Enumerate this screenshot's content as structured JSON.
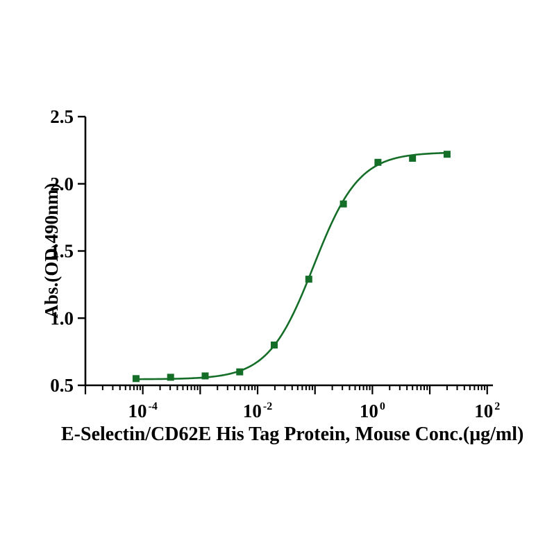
{
  "figure": {
    "background": "#ffffff"
  },
  "chart_data": {
    "type": "scatter",
    "title": "",
    "xlabel": "E-Selectin/CD62E His Tag Protein, Mouse Conc.(μg/ml)",
    "ylabel": "Abs.(OD.490nm)",
    "xscale": "log10",
    "xlim_log10": [
      -5,
      2.1
    ],
    "ylim": [
      0.5,
      2.5
    ],
    "grid": false,
    "legend": "none",
    "axis_color": "#000000",
    "series_color": "#156e28",
    "marker": "square",
    "yticks": [
      {
        "label": "0.5",
        "value": 0.5
      },
      {
        "label": "1.0",
        "value": 1.0
      },
      {
        "label": "1.5",
        "value": 1.5
      },
      {
        "label": "2.0",
        "value": 2.0
      },
      {
        "label": "2.5",
        "value": 2.5
      }
    ],
    "xticks": [
      {
        "base": "10",
        "exp": "-4",
        "log10": -4
      },
      {
        "base": "10",
        "exp": "-2",
        "log10": -2
      },
      {
        "base": "10",
        "exp": "0",
        "log10": 0
      },
      {
        "base": "10",
        "exp": "2",
        "log10": 2
      }
    ],
    "points": [
      {
        "x": 7.63e-05,
        "y": 0.55
      },
      {
        "x": 0.000305,
        "y": 0.56
      },
      {
        "x": 0.00122,
        "y": 0.57
      },
      {
        "x": 0.00488,
        "y": 0.6
      },
      {
        "x": 0.0195,
        "y": 0.8
      },
      {
        "x": 0.078,
        "y": 1.29
      },
      {
        "x": 0.3125,
        "y": 1.85
      },
      {
        "x": 1.25,
        "y": 2.16
      },
      {
        "x": 5,
        "y": 2.19
      },
      {
        "x": 20,
        "y": 2.22
      }
    ],
    "fit_curve": {
      "model": "4PL",
      "bottom": 0.545,
      "top": 2.235,
      "ec50": 0.095,
      "hill": 1.1
    }
  }
}
